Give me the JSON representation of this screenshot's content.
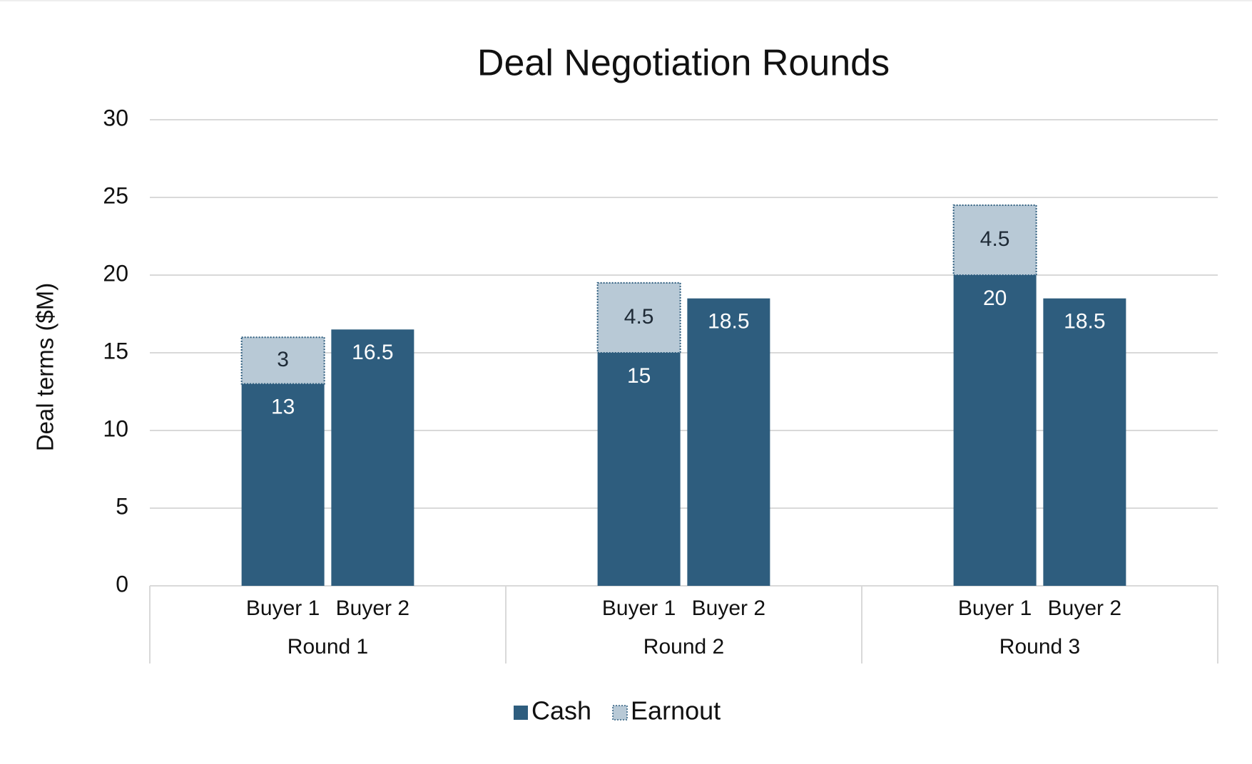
{
  "chart_data": {
    "type": "stacked-bar",
    "title": "Deal Negotiation Rounds",
    "y_label": "Deal terms ($M)",
    "categories": [
      "Buyer 1",
      "Buyer 2",
      "Buyer 1",
      "Buyer 2",
      "Buyer 1",
      "Buyer 2"
    ],
    "groups": [
      "Round 1",
      "Round 2",
      "Round 3"
    ],
    "series": [
      {
        "name": "Cash",
        "color": "#2e5d7e",
        "values": [
          13,
          16.5,
          15,
          18.5,
          20,
          18.5
        ]
      },
      {
        "name": "Earnout",
        "color": "#b8c9d6",
        "values": [
          3,
          null,
          4.5,
          null,
          4.5,
          null
        ]
      }
    ],
    "ylim": [
      0,
      30
    ],
    "yticks": [
      0,
      5,
      10,
      15,
      20,
      25,
      30
    ],
    "grid": true,
    "legend": "bottom"
  }
}
